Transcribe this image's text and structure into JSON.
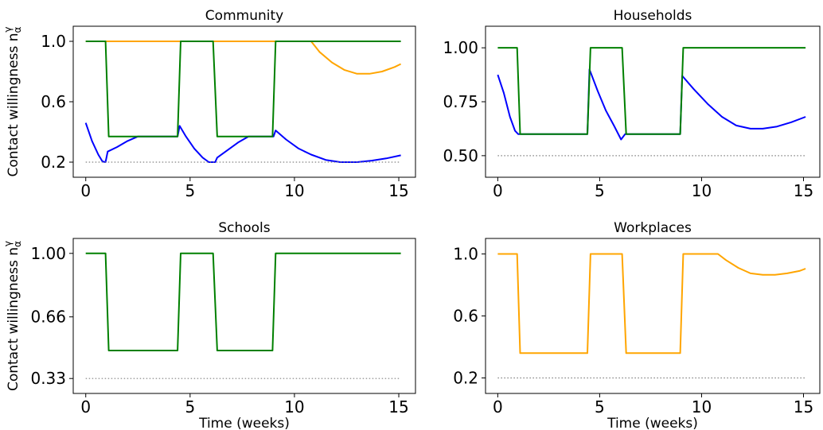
{
  "colors": {
    "green": "#008000",
    "blue": "#0000ff",
    "orange": "#ffa500",
    "dotted": "#808080"
  },
  "chart_data": [
    {
      "type": "line",
      "title": "Community",
      "ylabel": "Contact willingness n_α^γ",
      "xlabel": "",
      "xlim": [
        -0.6,
        15.8
      ],
      "ylim": [
        0.1,
        1.1
      ],
      "xticks": [
        0,
        5,
        10,
        15
      ],
      "xtick_labels": [
        "0",
        "5",
        "10",
        "15"
      ],
      "yticks": [
        0.2,
        0.6,
        1.0
      ],
      "ytick_labels": [
        "0.2",
        "0.6",
        "1.0"
      ],
      "series": [
        {
          "color": "orange",
          "style": "solid",
          "points": [
            [
              0,
              1
            ],
            [
              10.8,
              1
            ],
            [
              11.2,
              0.93
            ],
            [
              11.8,
              0.86
            ],
            [
              12.4,
              0.81
            ],
            [
              13,
              0.785
            ],
            [
              13.6,
              0.785
            ],
            [
              14.2,
              0.8
            ],
            [
              14.8,
              0.83
            ],
            [
              15.1,
              0.85
            ]
          ]
        },
        {
          "color": "blue",
          "style": "solid",
          "points": [
            [
              0,
              0.46
            ],
            [
              0.3,
              0.34
            ],
            [
              0.6,
              0.25
            ],
            [
              0.8,
              0.205
            ],
            [
              0.95,
              0.2
            ],
            [
              1.05,
              0.27
            ],
            [
              1.5,
              0.3
            ],
            [
              2,
              0.34
            ],
            [
              2.5,
              0.37
            ],
            [
              3,
              0.37
            ],
            [
              4.4,
              0.37
            ],
            [
              4.5,
              0.44
            ],
            [
              4.8,
              0.37
            ],
            [
              5.2,
              0.29
            ],
            [
              5.6,
              0.23
            ],
            [
              5.9,
              0.2
            ],
            [
              6.2,
              0.2
            ],
            [
              6.3,
              0.23
            ],
            [
              6.8,
              0.28
            ],
            [
              7.3,
              0.33
            ],
            [
              7.8,
              0.37
            ],
            [
              9,
              0.37
            ],
            [
              9.1,
              0.41
            ],
            [
              9.6,
              0.35
            ],
            [
              10.2,
              0.29
            ],
            [
              10.8,
              0.25
            ],
            [
              11.5,
              0.215
            ],
            [
              12.2,
              0.2
            ],
            [
              13,
              0.2
            ],
            [
              13.7,
              0.21
            ],
            [
              14.4,
              0.225
            ],
            [
              15.1,
              0.245
            ]
          ]
        },
        {
          "color": "green",
          "style": "solid",
          "points": [
            [
              0,
              1
            ],
            [
              0.95,
              1
            ],
            [
              1.1,
              0.37
            ],
            [
              4.4,
              0.37
            ],
            [
              4.55,
              1
            ],
            [
              6.1,
              1
            ],
            [
              6.3,
              0.37
            ],
            [
              8.95,
              0.37
            ],
            [
              9.1,
              1
            ],
            [
              15.1,
              1
            ]
          ]
        },
        {
          "color": "dotted",
          "style": "dotted",
          "points": [
            [
              0,
              0.2
            ],
            [
              15.1,
              0.2
            ]
          ]
        }
      ]
    },
    {
      "type": "line",
      "title": "Households",
      "ylabel": "",
      "xlabel": "",
      "xlim": [
        -0.6,
        15.8
      ],
      "ylim": [
        0.4,
        1.1
      ],
      "xticks": [
        0,
        5,
        10,
        15
      ],
      "xtick_labels": [
        "0",
        "5",
        "10",
        "15"
      ],
      "yticks": [
        0.5,
        0.75,
        1.0
      ],
      "ytick_labels": [
        "0.50",
        "0.75",
        "1.00"
      ],
      "series": [
        {
          "color": "blue",
          "style": "solid",
          "points": [
            [
              0,
              0.875
            ],
            [
              0.3,
              0.79
            ],
            [
              0.6,
              0.68
            ],
            [
              0.85,
              0.615
            ],
            [
              1,
              0.6
            ],
            [
              4.4,
              0.6
            ],
            [
              4.5,
              0.9
            ],
            [
              4.9,
              0.8
            ],
            [
              5.3,
              0.71
            ],
            [
              5.7,
              0.64
            ],
            [
              6.05,
              0.575
            ],
            [
              6.25,
              0.6
            ],
            [
              8.95,
              0.6
            ],
            [
              9.05,
              0.87
            ],
            [
              9.6,
              0.81
            ],
            [
              10.3,
              0.74
            ],
            [
              11,
              0.68
            ],
            [
              11.7,
              0.64
            ],
            [
              12.4,
              0.625
            ],
            [
              13,
              0.625
            ],
            [
              13.7,
              0.635
            ],
            [
              14.4,
              0.655
            ],
            [
              15.1,
              0.68
            ]
          ]
        },
        {
          "color": "green",
          "style": "solid",
          "points": [
            [
              0,
              1
            ],
            [
              0.95,
              1
            ],
            [
              1.1,
              0.6
            ],
            [
              4.4,
              0.6
            ],
            [
              4.55,
              1
            ],
            [
              6.1,
              1
            ],
            [
              6.3,
              0.6
            ],
            [
              8.95,
              0.6
            ],
            [
              9.1,
              1
            ],
            [
              15.1,
              1
            ]
          ]
        },
        {
          "color": "dotted",
          "style": "dotted",
          "points": [
            [
              0,
              0.5
            ],
            [
              15.1,
              0.5
            ]
          ]
        }
      ]
    },
    {
      "type": "line",
      "title": "Schools",
      "ylabel": "Contact willingness n_α^γ",
      "xlabel": "Time (weeks)",
      "xlim": [
        -0.6,
        15.8
      ],
      "ylim": [
        0.25,
        1.08
      ],
      "xticks": [
        0,
        5,
        10,
        15
      ],
      "xtick_labels": [
        "0",
        "5",
        "10",
        "15"
      ],
      "yticks": [
        0.33,
        0.66,
        1.0
      ],
      "ytick_labels": [
        "0.33",
        "0.66",
        "1.00"
      ],
      "series": [
        {
          "color": "green",
          "style": "solid",
          "points": [
            [
              0,
              1
            ],
            [
              0.95,
              1
            ],
            [
              1.1,
              0.48
            ],
            [
              4.4,
              0.48
            ],
            [
              4.55,
              1
            ],
            [
              6.1,
              1
            ],
            [
              6.3,
              0.48
            ],
            [
              8.95,
              0.48
            ],
            [
              9.1,
              1
            ],
            [
              15.1,
              1
            ]
          ]
        },
        {
          "color": "dotted",
          "style": "dotted",
          "points": [
            [
              0,
              0.33
            ],
            [
              15.1,
              0.33
            ]
          ]
        }
      ]
    },
    {
      "type": "line",
      "title": "Workplaces",
      "ylabel": "",
      "xlabel": "Time (weeks)",
      "xlim": [
        -0.6,
        15.8
      ],
      "ylim": [
        0.1,
        1.1
      ],
      "xticks": [
        0,
        5,
        10,
        15
      ],
      "xtick_labels": [
        "0",
        "5",
        "10",
        "15"
      ],
      "yticks": [
        0.2,
        0.6,
        1.0
      ],
      "ytick_labels": [
        "0.2",
        "0.6",
        "1.0"
      ],
      "series": [
        {
          "color": "orange",
          "style": "solid",
          "points": [
            [
              0,
              1
            ],
            [
              0.95,
              1
            ],
            [
              1.1,
              0.36
            ],
            [
              4.4,
              0.36
            ],
            [
              4.55,
              1
            ],
            [
              6.1,
              1
            ],
            [
              6.3,
              0.36
            ],
            [
              8.95,
              0.36
            ],
            [
              9.1,
              1
            ],
            [
              10.8,
              1
            ],
            [
              11.2,
              0.96
            ],
            [
              11.8,
              0.91
            ],
            [
              12.4,
              0.875
            ],
            [
              13,
              0.865
            ],
            [
              13.6,
              0.865
            ],
            [
              14.2,
              0.875
            ],
            [
              14.8,
              0.89
            ],
            [
              15.1,
              0.905
            ]
          ]
        },
        {
          "color": "dotted",
          "style": "dotted",
          "points": [
            [
              0,
              0.2
            ],
            [
              15.1,
              0.2
            ]
          ]
        }
      ]
    }
  ]
}
